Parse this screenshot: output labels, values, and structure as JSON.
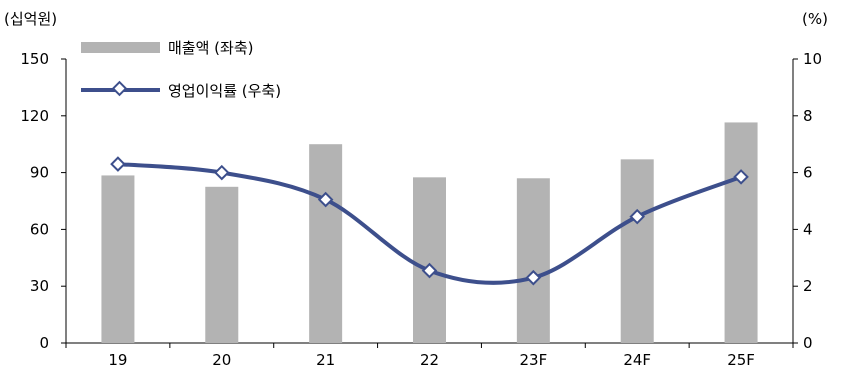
{
  "chart_data": {
    "type": "bar+line",
    "categories": [
      "19",
      "20",
      "21",
      "22",
      "23F",
      "24F",
      "25F"
    ],
    "series": [
      {
        "name": "매출액 (좌축)",
        "kind": "bar",
        "axis": "left",
        "color": "#b3b3b3",
        "values": [
          88.5,
          82.5,
          105,
          87.5,
          87,
          97,
          116.5
        ]
      },
      {
        "name": "영업이익률 (우축)",
        "kind": "line",
        "axis": "right",
        "color": "#3d4f8c",
        "values": [
          6.3,
          6.0,
          5.05,
          2.55,
          2.3,
          4.45,
          5.85
        ]
      }
    ],
    "left_axis": {
      "unit": "(십억원)",
      "ylim": [
        0,
        150
      ],
      "ticks": [
        "0",
        "30",
        "60",
        "90",
        "120",
        "150"
      ]
    },
    "right_axis": {
      "unit": "(%)",
      "ylim": [
        0,
        10
      ],
      "ticks": [
        "0",
        "2",
        "4",
        "6",
        "8",
        "10"
      ]
    },
    "grid": false,
    "legend_position": "top-left"
  }
}
